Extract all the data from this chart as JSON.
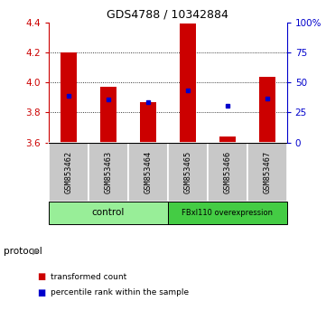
{
  "title": "GDS4788 / 10342884",
  "samples": [
    "GSM853462",
    "GSM853463",
    "GSM853464",
    "GSM853465",
    "GSM853466",
    "GSM853467"
  ],
  "red_bottom": [
    3.6,
    3.6,
    3.6,
    3.6,
    3.6,
    3.6
  ],
  "red_top": [
    4.2,
    3.97,
    3.87,
    4.39,
    3.64,
    4.04
  ],
  "blue_values": [
    3.91,
    3.885,
    3.872,
    3.95,
    3.845,
    3.895
  ],
  "ylim": [
    3.6,
    4.4
  ],
  "yticks_left": [
    3.6,
    3.8,
    4.0,
    4.2,
    4.4
  ],
  "yticks_right": [
    0,
    25,
    50,
    75,
    100
  ],
  "yticks_right_labels": [
    "0",
    "25",
    "50",
    "75",
    "100%"
  ],
  "grid_values": [
    3.8,
    4.0,
    4.2
  ],
  "ctrl_color": "#98EE98",
  "fbx_color": "#44CC44",
  "protocol_label": "protocol",
  "legend_items": [
    {
      "label": "transformed count",
      "color": "#CC0000"
    },
    {
      "label": "percentile rank within the sample",
      "color": "#0000CC"
    }
  ],
  "left_color": "#CC0000",
  "right_color": "#0000CC",
  "bar_color": "#CC0000",
  "blue_marker_color": "#0000CC",
  "sample_box_color": "#C8C8C8",
  "bar_width": 0.4,
  "background_color": "#FFFFFF"
}
